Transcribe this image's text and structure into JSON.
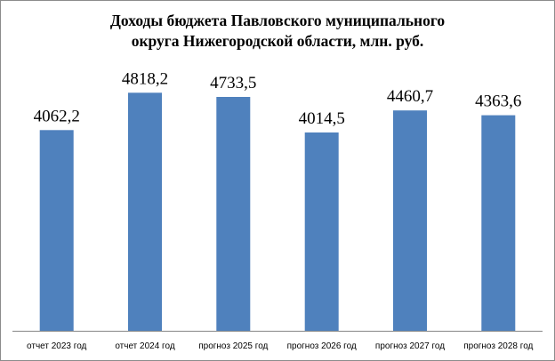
{
  "chart_data": {
    "type": "bar",
    "title_lines": [
      "Доходы бюджета Павловского муниципального",
      "округа Нижегородской области, млн. руб."
    ],
    "categories": [
      "отчет  2023 год",
      "отчет  2024 год",
      "прогноз 2025 год",
      "прогноз 2026 год",
      "прогноз 2027 год",
      "прогноз 2028 год"
    ],
    "values": [
      4062.2,
      4818.2,
      4733.5,
      4014.5,
      4460.7,
      4363.6
    ],
    "value_labels": [
      "4062,2",
      "4818,2",
      "4733,5",
      "4014,5",
      "4460,7",
      "4363,6"
    ],
    "ylim": [
      0,
      5400
    ],
    "grid": false,
    "legend": "none",
    "bar_color": "#4f81bd"
  }
}
